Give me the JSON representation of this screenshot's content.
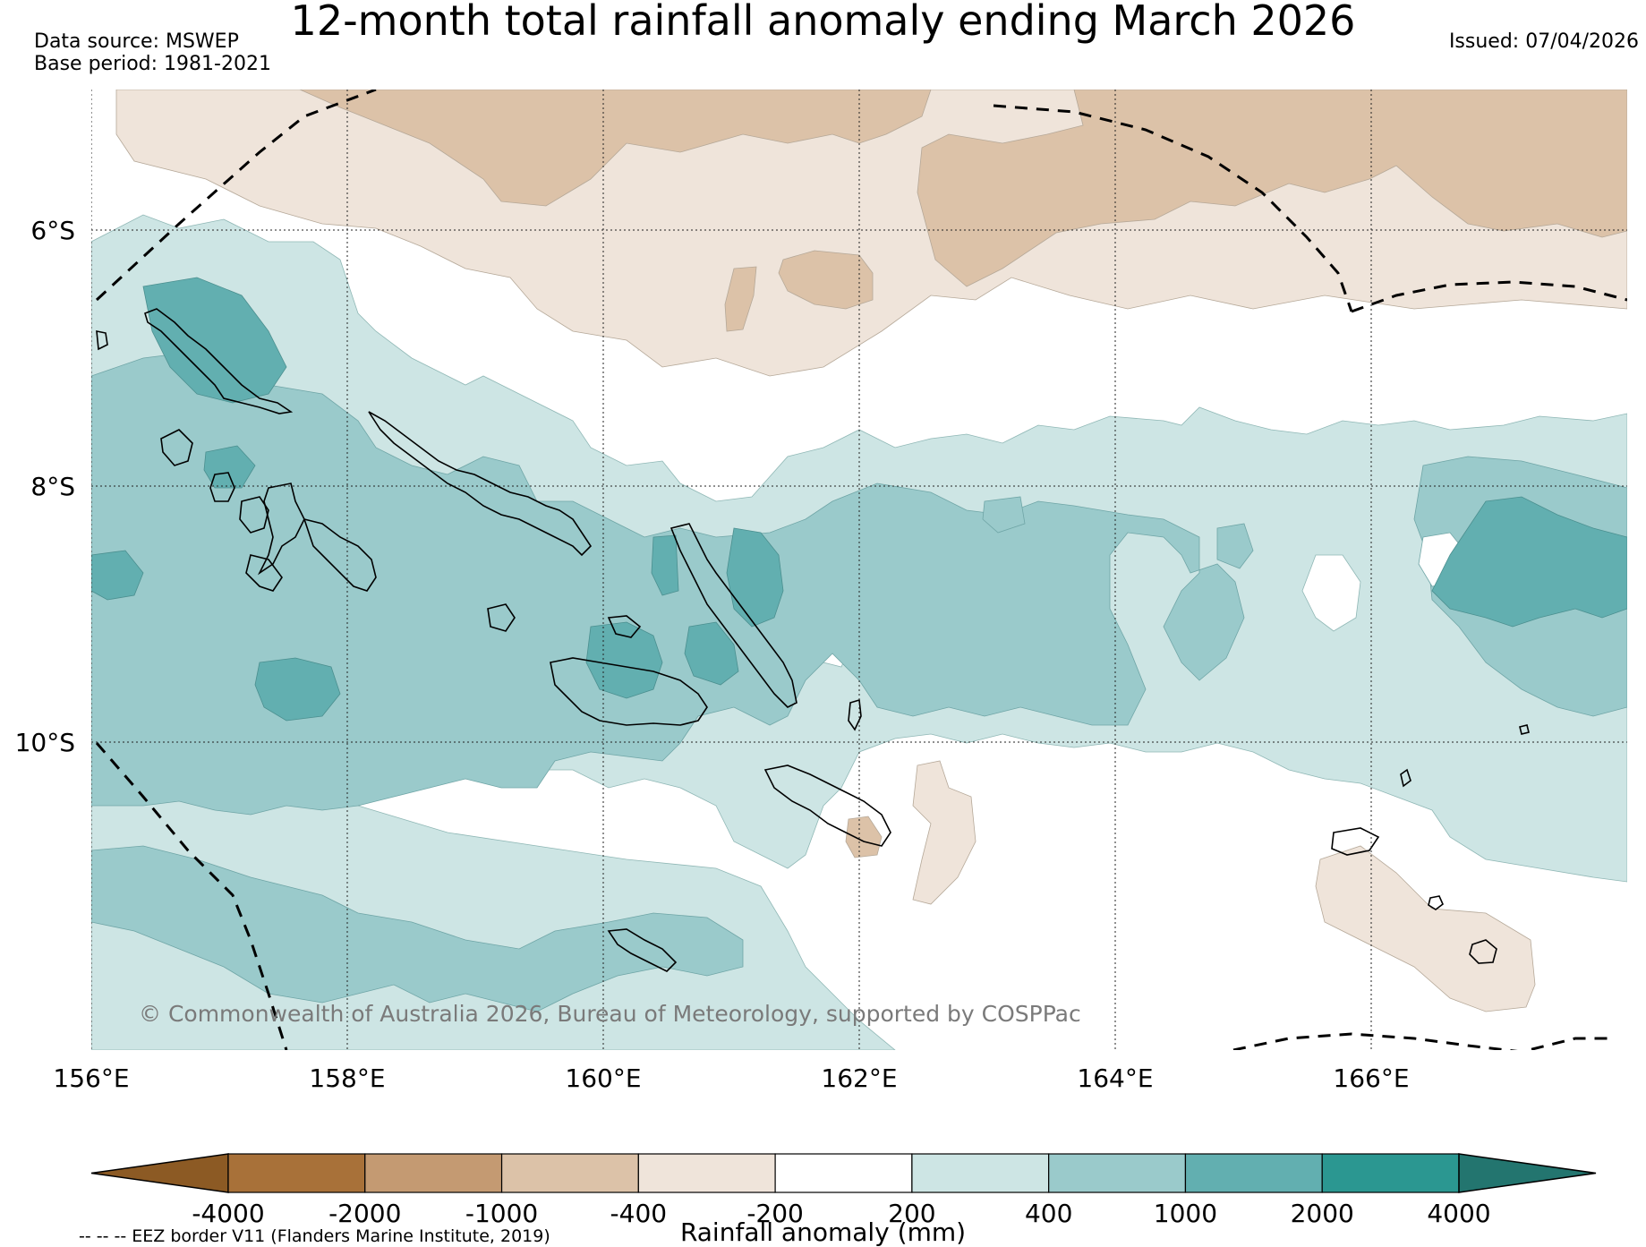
{
  "title": "12-month total rainfall anomaly ending March 2026",
  "data_source": "Data source: MSWEP",
  "base_period": "Base period: 1981-2021",
  "issued": "Issued: 07/04/2026",
  "copyright": "© Commonwealth of Australia 2026, Bureau of Meteorology, supported by COSPPac",
  "lat_labels": [
    "6°S",
    "8°S",
    "10°S"
  ],
  "lon_labels": [
    "156°E",
    "158°E",
    "160°E",
    "162°E",
    "164°E",
    "166°E"
  ],
  "colorbar": {
    "title": "Rainfall anomaly (mm)",
    "tick_labels": [
      "-4000",
      "-2000",
      "-1000",
      "-400",
      "-200",
      "200",
      "400",
      "1000",
      "2000",
      "4000"
    ],
    "colors": [
      "#8c5a24",
      "#a87139",
      "#c49a72",
      "#dcc2a8",
      "#efe4da",
      "#ffffff",
      "#cde5e4",
      "#9acacb",
      "#62afb0",
      "#2b9791",
      "#23756f"
    ]
  },
  "eez_legend": "-- -- -- EEZ border V11 (Flanders Marine Institute, 2019)",
  "map_layers": [
    "rainfall-anomaly-fill",
    "coastlines",
    "eez-border",
    "graticule"
  ]
}
